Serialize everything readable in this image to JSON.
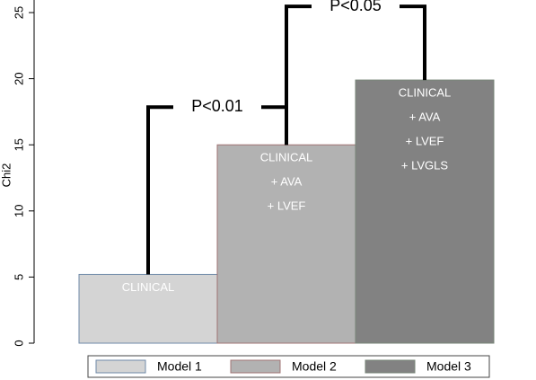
{
  "chart_data": {
    "type": "bar",
    "y_label": "Chi2",
    "series": [
      {
        "name": "Model 1",
        "color": "#d4d4d4",
        "edge": "#6f8aa8",
        "values": [
          5.2
        ],
        "label_lines": [
          "CLINICAL"
        ]
      },
      {
        "name": "Model 2",
        "color": "#b2b2b2",
        "edge": "#a07474",
        "values": [
          15
        ],
        "label_lines": [
          "CLINICAL",
          "+ AVA",
          "+ LVEF"
        ]
      },
      {
        "name": "Model 3",
        "color": "#828282",
        "edge": "#788678",
        "values": [
          19.9
        ],
        "label_lines": [
          "CLINICAL",
          "+ AVA",
          "+ LVEF",
          "+ LVGLS"
        ]
      }
    ],
    "annotations": [
      "P<0.01",
      "P<0.05"
    ],
    "ylim": [
      0,
      25
    ],
    "yticks": [
      0,
      5,
      10,
      15,
      20,
      25
    ],
    "grid": false
  }
}
